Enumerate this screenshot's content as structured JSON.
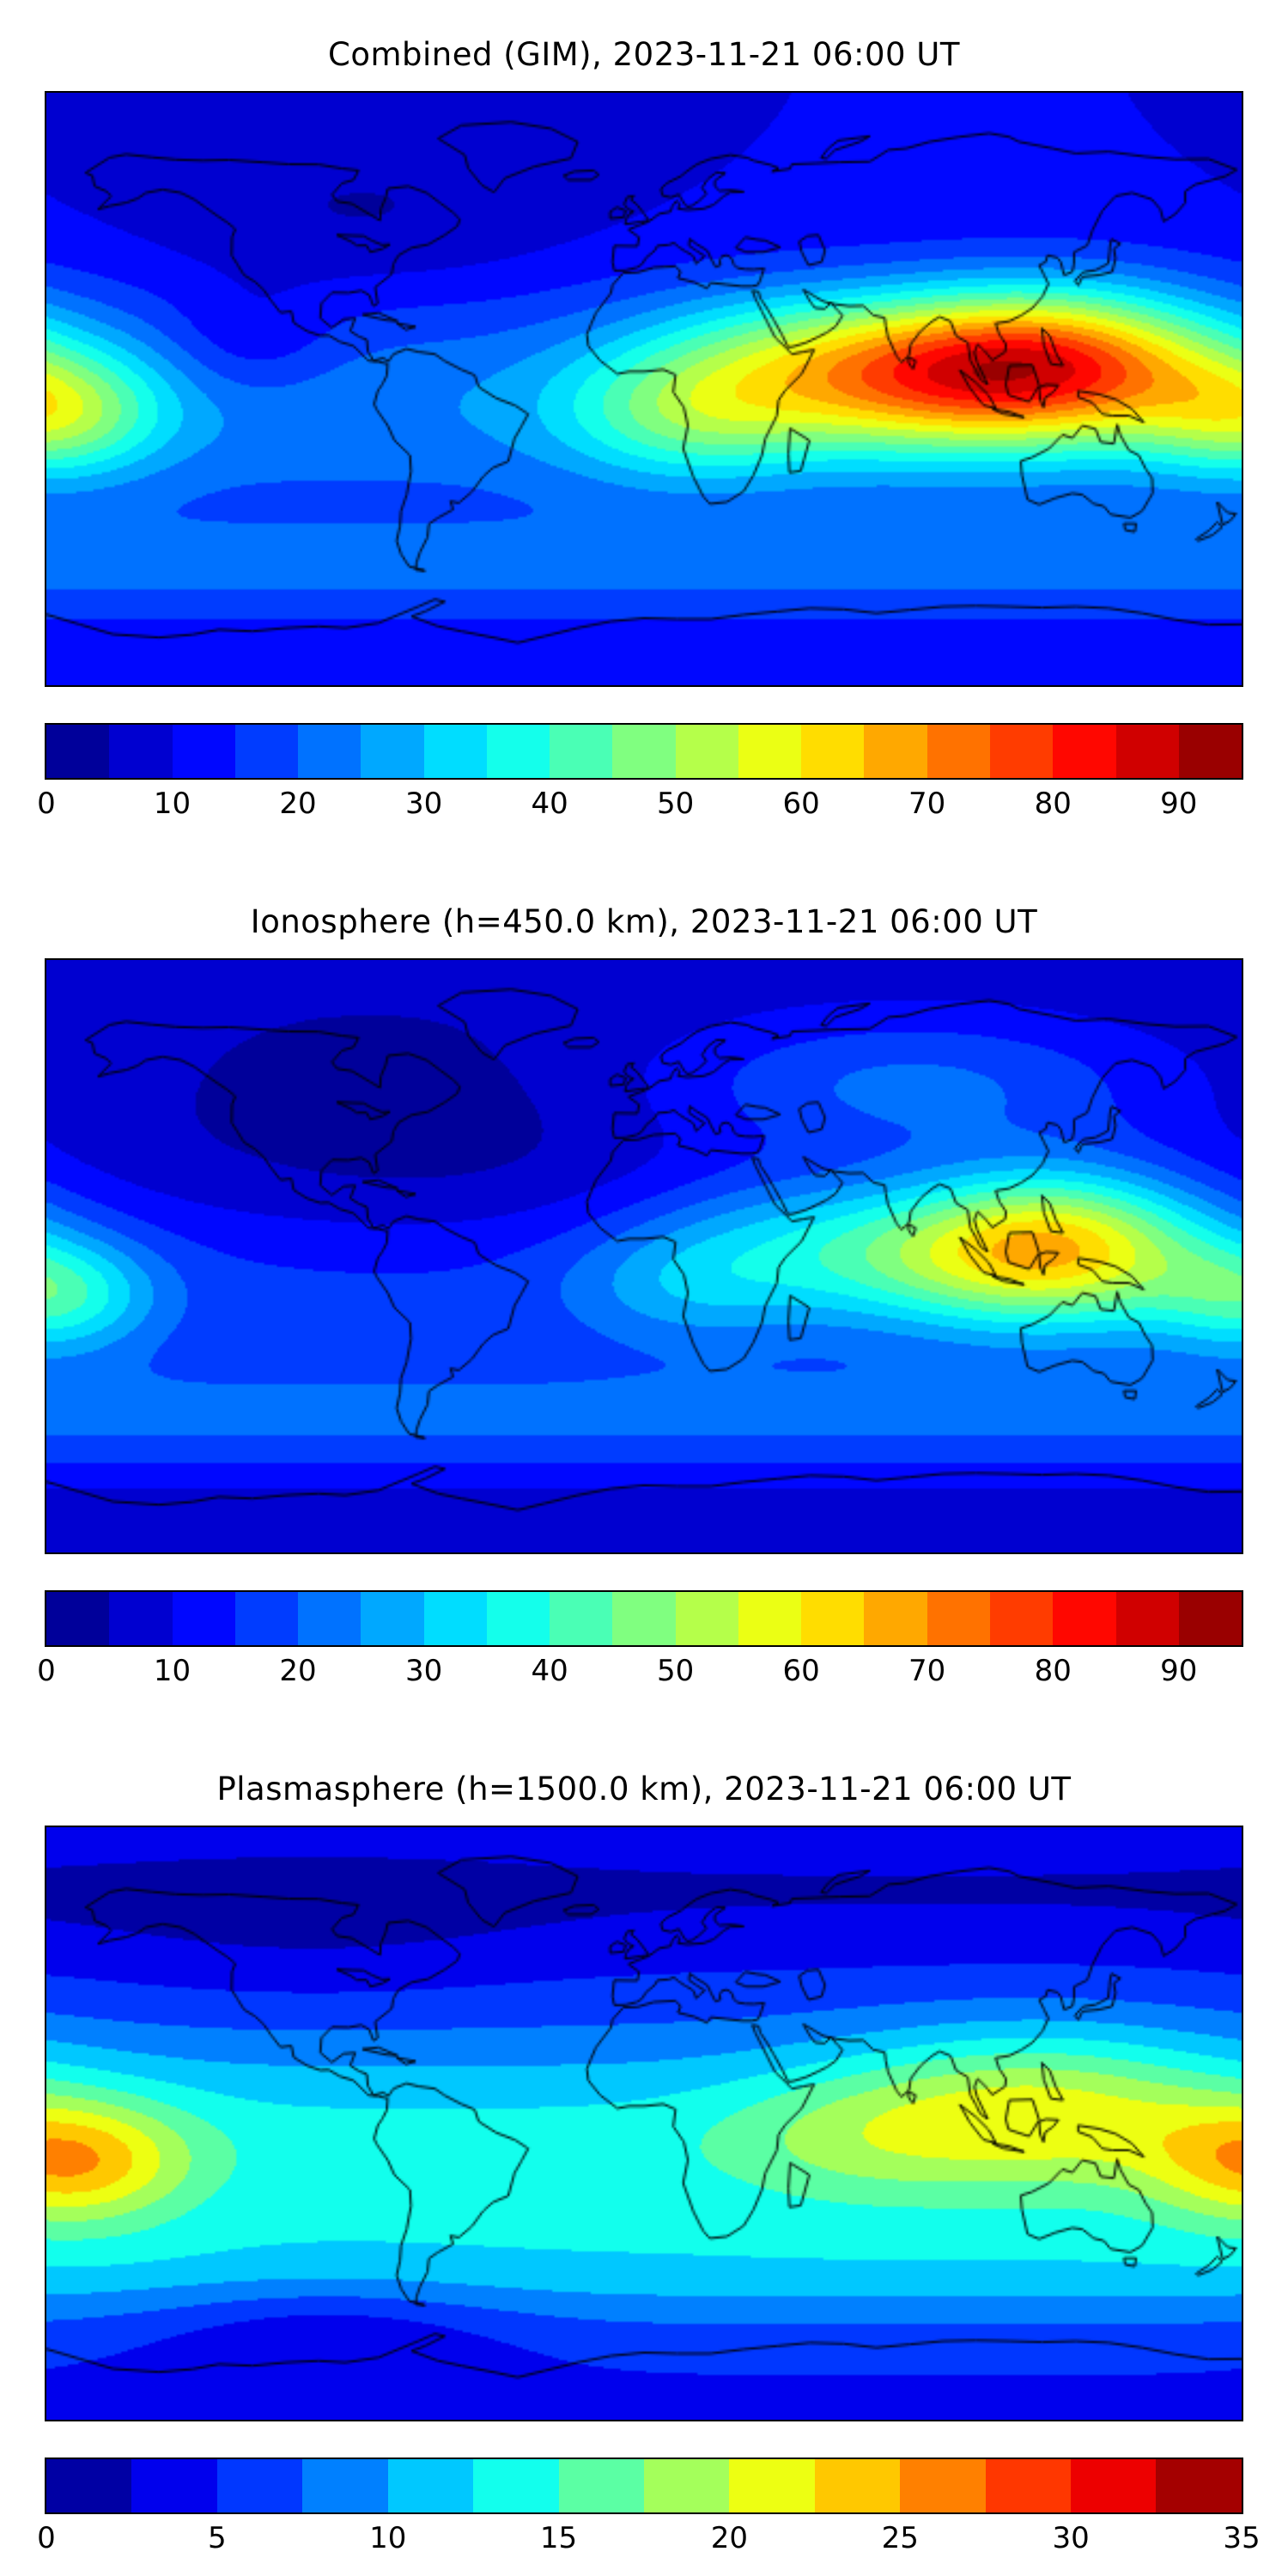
{
  "page": {
    "background": "#ffffff",
    "coastline_color": "#000000",
    "frame_color": "#000000"
  },
  "chart_data": [
    {
      "type": "heatmap",
      "title": "Combined (GIM), 2023-11-21 06:00 UT",
      "projection": "equirectangular",
      "lon_range": [
        -180,
        180
      ],
      "lat_range": [
        -90,
        90
      ],
      "grid": false,
      "colorbar": {
        "vmin": 0,
        "vmax": 95,
        "n_bands": 19,
        "colormap": "jet",
        "orientation": "horizontal",
        "ticks": [
          {
            "value": 0,
            "label": "0"
          },
          {
            "value": 10,
            "label": "10"
          },
          {
            "value": 20,
            "label": "20"
          },
          {
            "value": 30,
            "label": "30"
          },
          {
            "value": 40,
            "label": "40"
          },
          {
            "value": 50,
            "label": "50"
          },
          {
            "value": 60,
            "label": "60"
          },
          {
            "value": 70,
            "label": "70"
          },
          {
            "value": 80,
            "label": "80"
          },
          {
            "value": 90,
            "label": "90"
          }
        ]
      },
      "peak": {
        "value": 90,
        "lon": 118,
        "lat": 7
      },
      "field_model": {
        "base": 10,
        "lat_bands": [
          {
            "lat": -5,
            "sigma": 25,
            "amp": 14
          },
          {
            "lat": -55,
            "sigma": 12,
            "amp": 10
          }
        ],
        "blobs": [
          {
            "lon": 118,
            "lat": 7,
            "slon": 38,
            "slat": 16,
            "amp": 62
          },
          {
            "lon": 70,
            "lat": -2,
            "slon": 30,
            "slat": 14,
            "amp": 14
          },
          {
            "lon": 15,
            "lat": -8,
            "slon": 28,
            "slat": 14,
            "amp": 22
          },
          {
            "lon": 45,
            "lat": 12,
            "slon": 35,
            "slat": 14,
            "amp": 18
          },
          {
            "lon": -177,
            "lat": -8,
            "slon": 22,
            "slat": 13,
            "amp": 26
          },
          {
            "lon": -85,
            "lat": 52,
            "slon": 45,
            "slat": 18,
            "amp": -6
          },
          {
            "lon": -118,
            "lat": 14,
            "slon": 18,
            "slat": 12,
            "amp": -8
          }
        ]
      }
    },
    {
      "type": "heatmap",
      "title": "Ionosphere  (h=450.0 km), 2023-11-21 06:00 UT",
      "projection": "equirectangular",
      "lon_range": [
        -180,
        180
      ],
      "lat_range": [
        -90,
        90
      ],
      "grid": false,
      "colorbar": {
        "vmin": 0,
        "vmax": 95,
        "n_bands": 19,
        "colormap": "jet",
        "orientation": "horizontal",
        "ticks": [
          {
            "value": 0,
            "label": "0"
          },
          {
            "value": 10,
            "label": "10"
          },
          {
            "value": 20,
            "label": "20"
          },
          {
            "value": 30,
            "label": "30"
          },
          {
            "value": 40,
            "label": "40"
          },
          {
            "value": 50,
            "label": "50"
          },
          {
            "value": 60,
            "label": "60"
          },
          {
            "value": 70,
            "label": "70"
          },
          {
            "value": 80,
            "label": "80"
          },
          {
            "value": 90,
            "label": "90"
          }
        ]
      },
      "peak": {
        "value": 67,
        "lon": 122,
        "lat": 3
      },
      "field_model": {
        "base": 6,
        "lat_bands": [
          {
            "lat": -10,
            "sigma": 23,
            "amp": 11
          },
          {
            "lat": -50,
            "sigma": 13,
            "amp": 13
          }
        ],
        "blobs": [
          {
            "lon": 122,
            "lat": 3,
            "slon": 33,
            "slat": 16,
            "amp": 50
          },
          {
            "lon": 70,
            "lat": -3,
            "slon": 28,
            "slat": 13,
            "amp": 10
          },
          {
            "lon": 15,
            "lat": -8,
            "slon": 26,
            "slat": 13,
            "amp": 12
          },
          {
            "lon": 45,
            "lat": 10,
            "slon": 32,
            "slat": 13,
            "amp": 10
          },
          {
            "lon": -177,
            "lat": -12,
            "slon": 20,
            "slat": 12,
            "amp": 22
          },
          {
            "lon": -70,
            "lat": 30,
            "slon": 55,
            "slat": 25,
            "amp": -5
          },
          {
            "lon": 80,
            "lat": 52,
            "slon": 55,
            "slat": 16,
            "amp": 15
          }
        ]
      }
    },
    {
      "type": "heatmap",
      "title": "Plasmasphere (h=1500.0 km), 2023-11-21 06:00 UT",
      "projection": "equirectangular",
      "lon_range": [
        -180,
        180
      ],
      "lat_range": [
        -90,
        90
      ],
      "grid": false,
      "colorbar": {
        "vmin": 0,
        "vmax": 35,
        "n_bands": 14,
        "colormap": "jet",
        "orientation": "horizontal",
        "ticks": [
          {
            "value": 0,
            "label": "0"
          },
          {
            "value": 5,
            "label": "5"
          },
          {
            "value": 10,
            "label": "10"
          },
          {
            "value": 15,
            "label": "15"
          },
          {
            "value": 20,
            "label": "20"
          },
          {
            "value": 25,
            "label": "25"
          },
          {
            "value": 30,
            "label": "30"
          },
          {
            "value": 35,
            "label": "35"
          }
        ]
      },
      "peak": {
        "value": 24,
        "lon": -172,
        "lat": -12
      },
      "field_model": {
        "base": 4.5,
        "lat_bands": [
          {
            "lat": -8,
            "sigma": 26,
            "amp": 9
          },
          {
            "lat": -45,
            "sigma": 13,
            "amp": 4
          },
          {
            "lat": 70,
            "sigma": 14,
            "amp": -2.2
          }
        ],
        "blobs": [
          {
            "lon": -172,
            "lat": -12,
            "slon": 24,
            "slat": 13,
            "amp": 11
          },
          {
            "lon": 118,
            "lat": 5,
            "slon": 42,
            "slat": 17,
            "amp": 9
          },
          {
            "lon": 60,
            "lat": -5,
            "slon": 30,
            "slat": 14,
            "amp": 3
          },
          {
            "lon": -95,
            "lat": -62,
            "slon": 38,
            "slat": 11,
            "amp": -3.5
          },
          {
            "lon": -100,
            "lat": 55,
            "slon": 50,
            "slat": 16,
            "amp": -1.5
          }
        ]
      }
    }
  ]
}
